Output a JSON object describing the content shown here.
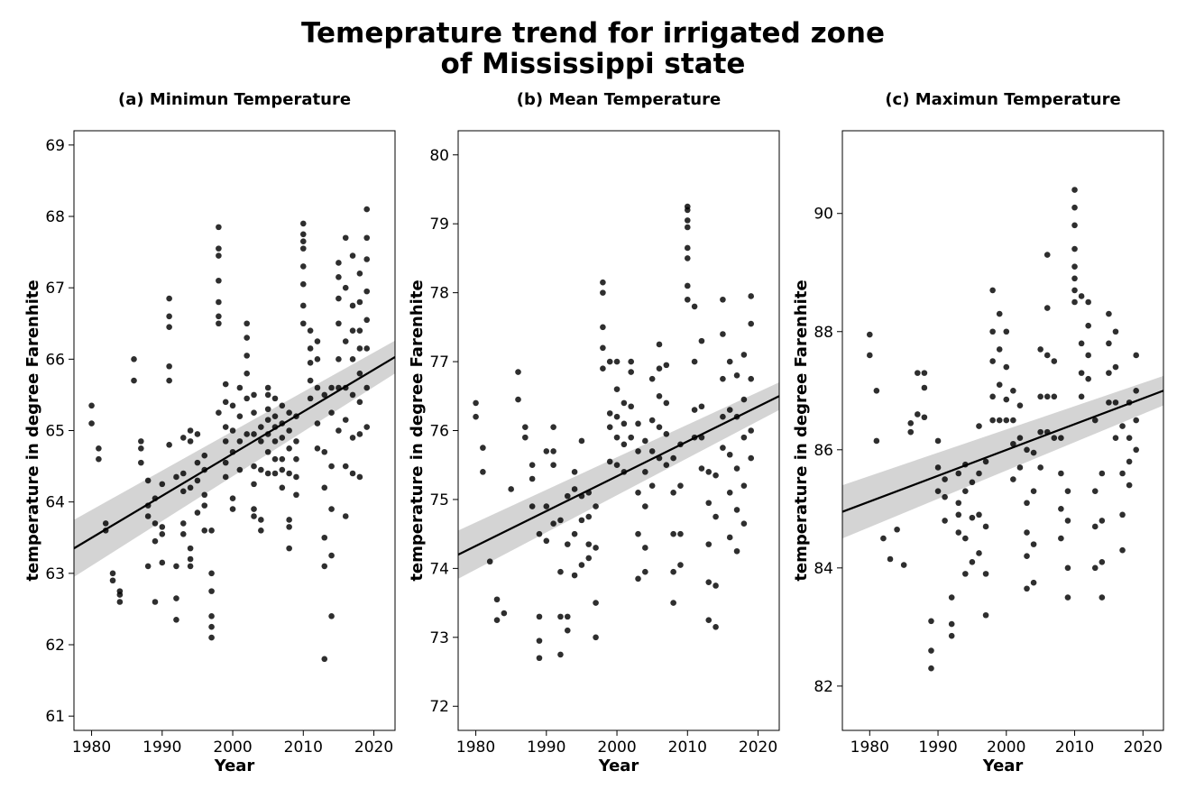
{
  "figure": {
    "title_line1": "Temeprature trend for irrigated zone",
    "title_line2": "of Mississippi state"
  },
  "chart_data": [
    {
      "type": "scatter",
      "title": "(a) Minimun Temperature",
      "xlabel": "Year",
      "ylabel": "temperature in degree Farenhite",
      "xlim": [
        1977.5,
        2023
      ],
      "ylim": [
        60.8,
        69.2
      ],
      "xticks": [
        1980,
        1990,
        2000,
        2010,
        2020
      ],
      "yticks": [
        61,
        62,
        63,
        64,
        65,
        66,
        67,
        68,
        69
      ],
      "regression": {
        "x": [
          1977.5,
          2023
        ],
        "y": [
          63.35,
          66.03
        ],
        "ci_low": [
          62.95,
          65.8
        ],
        "ci_high": [
          63.75,
          66.26
        ]
      },
      "x": [
        1980,
        1980,
        1981,
        1981,
        1982,
        1982,
        1983,
        1983,
        1984,
        1984,
        1984,
        1986,
        1986,
        1987,
        1987,
        1987,
        1988,
        1988,
        1988,
        1988,
        1989,
        1989,
        1989,
        1989,
        1990,
        1990,
        1990,
        1990,
        1991,
        1991,
        1991,
        1991,
        1991,
        1991,
        1992,
        1992,
        1992,
        1992,
        1993,
        1993,
        1993,
        1993,
        1993,
        1994,
        1994,
        1994,
        1994,
        1994,
        1994,
        1995,
        1995,
        1995,
        1995,
        1996,
        1996,
        1996,
        1996,
        1996,
        1997,
        1997,
        1997,
        1997,
        1997,
        1997,
        1998,
        1998,
        1998,
        1998,
        1998,
        1998,
        1998,
        1998,
        1999,
        1999,
        1999,
        1999,
        1999,
        1999,
        2000,
        2000,
        2000,
        2000,
        2000,
        2001,
        2001,
        2001,
        2001,
        2002,
        2002,
        2002,
        2002,
        2002,
        2002,
        2003,
        2003,
        2003,
        2003,
        2003,
        2003,
        2003,
        2004,
        2004,
        2004,
        2004,
        2004,
        2005,
        2005,
        2005,
        2005,
        2005,
        2005,
        2005,
        2006,
        2006,
        2006,
        2006,
        2006,
        2006,
        2007,
        2007,
        2007,
        2007,
        2007,
        2007,
        2008,
        2008,
        2008,
        2008,
        2008,
        2008,
        2008,
        2009,
        2009,
        2009,
        2009,
        2009,
        2010,
        2010,
        2010,
        2010,
        2010,
        2010,
        2010,
        2010,
        2011,
        2011,
        2011,
        2011,
        2011,
        2012,
        2012,
        2012,
        2012,
        2012,
        2013,
        2013,
        2013,
        2013,
        2013,
        2013,
        2014,
        2014,
        2014,
        2014,
        2014,
        2014,
        2015,
        2015,
        2015,
        2015,
        2015,
        2015,
        2015,
        2016,
        2016,
        2016,
        2016,
        2016,
        2016,
        2016,
        2017,
        2017,
        2017,
        2017,
        2017,
        2017,
        2017,
        2018,
        2018,
        2018,
        2018,
        2018,
        2018,
        2018,
        2018,
        2019,
        2019,
        2019,
        2019,
        2019,
        2019,
        2019,
        2019
      ],
      "y": [
        65.1,
        65.35,
        64.6,
        64.75,
        63.6,
        63.7,
        62.9,
        63.0,
        62.6,
        62.7,
        62.75,
        65.7,
        66.0,
        64.55,
        64.75,
        64.85,
        63.8,
        63.95,
        63.1,
        64.3,
        62.6,
        63.45,
        63.7,
        64.05,
        63.15,
        63.55,
        63.65,
        64.25,
        65.7,
        65.9,
        66.45,
        66.6,
        66.85,
        64.8,
        62.35,
        62.65,
        63.1,
        64.35,
        63.7,
        64.15,
        63.55,
        64.4,
        64.9,
        63.1,
        63.2,
        63.35,
        64.2,
        64.85,
        65.0,
        63.85,
        64.3,
        64.55,
        64.95,
        63.6,
        63.95,
        64.1,
        64.45,
        64.65,
        62.1,
        62.25,
        62.4,
        62.75,
        63.0,
        63.6,
        66.5,
        66.6,
        66.8,
        67.1,
        67.45,
        67.55,
        67.85,
        65.25,
        64.35,
        64.55,
        64.85,
        65.05,
        65.4,
        65.65,
        63.9,
        64.05,
        64.7,
        65.0,
        65.35,
        64.45,
        64.85,
        65.2,
        65.6,
        64.95,
        65.45,
        65.8,
        66.05,
        66.3,
        66.5,
        63.8,
        63.9,
        64.25,
        64.5,
        64.95,
        65.25,
        65.5,
        63.6,
        63.75,
        64.45,
        64.85,
        65.05,
        64.4,
        64.7,
        64.95,
        65.15,
        65.3,
        65.5,
        65.6,
        64.4,
        64.6,
        64.85,
        65.05,
        65.2,
        65.45,
        64.2,
        64.45,
        64.6,
        64.9,
        65.1,
        65.35,
        63.35,
        63.65,
        63.75,
        64.4,
        64.75,
        65.0,
        65.25,
        64.1,
        64.35,
        64.6,
        64.85,
        65.2,
        66.5,
        66.75,
        67.05,
        67.3,
        67.55,
        67.65,
        67.75,
        67.9,
        65.45,
        65.7,
        65.95,
        66.15,
        66.4,
        64.75,
        65.1,
        65.6,
        66.0,
        66.25,
        61.8,
        63.1,
        63.5,
        64.2,
        64.7,
        65.5,
        62.4,
        63.25,
        63.9,
        64.5,
        65.25,
        65.6,
        65.0,
        65.6,
        66.0,
        66.5,
        66.85,
        67.15,
        67.35,
        63.8,
        64.5,
        65.15,
        65.6,
        66.25,
        67.0,
        67.7,
        64.4,
        64.9,
        65.5,
        66.0,
        66.4,
        66.75,
        67.45,
        64.35,
        64.95,
        65.4,
        65.8,
        66.15,
        66.4,
        66.8,
        67.2,
        65.05,
        65.6,
        66.15,
        66.55,
        66.95,
        67.4,
        67.7,
        68.1
      ]
    },
    {
      "type": "scatter",
      "title": "(b) Mean Temperature",
      "xlabel": "Year",
      "ylabel": "temperature in degree Farenhite",
      "xlim": [
        1977.5,
        2023
      ],
      "ylim": [
        71.65,
        80.35
      ],
      "xticks": [
        1980,
        1990,
        2000,
        2010,
        2020
      ],
      "yticks": [
        72,
        73,
        74,
        75,
        76,
        77,
        78,
        79,
        80
      ],
      "regression": {
        "x": [
          1977.5,
          2023
        ],
        "y": [
          74.2,
          76.5
        ],
        "ci_low": [
          73.85,
          76.3
        ],
        "ci_high": [
          74.55,
          76.7
        ]
      },
      "x": [
        1980,
        1980,
        1981,
        1981,
        1982,
        1983,
        1983,
        1984,
        1985,
        1986,
        1986,
        1987,
        1987,
        1988,
        1988,
        1988,
        1989,
        1989,
        1989,
        1989,
        1990,
        1990,
        1990,
        1991,
        1991,
        1991,
        1991,
        1992,
        1992,
        1992,
        1992,
        1993,
        1993,
        1993,
        1993,
        1994,
        1994,
        1994,
        1994,
        1995,
        1995,
        1995,
        1995,
        1996,
        1996,
        1996,
        1996,
        1997,
        1997,
        1997,
        1997,
        1998,
        1998,
        1998,
        1998,
        1998,
        1999,
        1999,
        1999,
        1999,
        2000,
        2000,
        2000,
        2000,
        2000,
        2001,
        2001,
        2001,
        2001,
        2002,
        2002,
        2002,
        2002,
        2003,
        2003,
        2003,
        2003,
        2003,
        2004,
        2004,
        2004,
        2004,
        2004,
        2005,
        2005,
        2005,
        2005,
        2006,
        2006,
        2006,
        2006,
        2006,
        2007,
        2007,
        2007,
        2007,
        2008,
        2008,
        2008,
        2008,
        2008,
        2009,
        2009,
        2009,
        2009,
        2010,
        2010,
        2010,
        2010,
        2010,
        2010,
        2010,
        2010,
        2011,
        2011,
        2011,
        2011,
        2012,
        2012,
        2012,
        2012,
        2013,
        2013,
        2013,
        2013,
        2013,
        2014,
        2014,
        2014,
        2014,
        2015,
        2015,
        2015,
        2015,
        2015,
        2016,
        2016,
        2016,
        2016,
        2016,
        2017,
        2017,
        2017,
        2017,
        2017,
        2018,
        2018,
        2018,
        2018,
        2018,
        2019,
        2019,
        2019,
        2019,
        2019
      ],
      "y": [
        76.2,
        76.4,
        75.4,
        75.75,
        74.1,
        73.25,
        73.55,
        73.35,
        75.15,
        76.45,
        76.85,
        75.9,
        76.05,
        74.9,
        75.3,
        75.5,
        72.7,
        72.95,
        73.3,
        74.5,
        74.4,
        74.9,
        75.7,
        74.65,
        75.5,
        75.7,
        76.05,
        72.75,
        73.3,
        73.95,
        74.7,
        73.1,
        73.3,
        74.35,
        75.05,
        73.9,
        74.5,
        75.15,
        75.4,
        74.05,
        74.7,
        75.05,
        75.85,
        74.15,
        74.35,
        74.75,
        75.1,
        73.0,
        73.5,
        74.3,
        74.9,
        76.9,
        77.2,
        77.5,
        78.0,
        78.15,
        76.05,
        75.55,
        76.25,
        77.0,
        75.5,
        75.9,
        76.2,
        76.6,
        77.0,
        75.4,
        75.8,
        76.1,
        76.4,
        75.9,
        76.35,
        76.85,
        77.0,
        73.85,
        74.5,
        75.1,
        75.7,
        76.1,
        73.95,
        74.3,
        74.9,
        75.4,
        75.85,
        75.2,
        75.7,
        76.15,
        76.75,
        75.6,
        76.05,
        76.5,
        76.9,
        77.25,
        75.5,
        75.95,
        76.4,
        76.95,
        73.5,
        73.95,
        74.5,
        75.1,
        75.6,
        74.05,
        74.5,
        75.2,
        75.8,
        77.9,
        78.1,
        78.5,
        78.95,
        79.25,
        79.2,
        79.05,
        78.65,
        75.9,
        76.3,
        77.0,
        77.8,
        75.45,
        75.9,
        76.35,
        77.3,
        73.25,
        73.8,
        74.35,
        74.95,
        75.4,
        73.15,
        73.75,
        74.75,
        75.35,
        75.75,
        76.2,
        76.75,
        77.4,
        77.9,
        74.45,
        75.1,
        75.65,
        76.3,
        77.0,
        74.25,
        74.85,
        75.45,
        76.2,
        76.8,
        74.65,
        75.2,
        75.9,
        76.45,
        77.1,
        75.6,
        76.0,
        76.75,
        77.55,
        77.95
      ]
    },
    {
      "type": "scatter",
      "title": "(c) Maximun Temperature",
      "xlabel": "Year",
      "ylabel": "temperature in degree Farenhite",
      "xlim": [
        1976,
        2023
      ],
      "ylim": [
        81.25,
        91.4
      ],
      "xticks": [
        1980,
        1990,
        2000,
        2010,
        2020
      ],
      "yticks": [
        82,
        84,
        86,
        88,
        90
      ],
      "regression": {
        "x": [
          1976,
          2023
        ],
        "y": [
          84.95,
          87.0
        ],
        "ci_low": [
          84.5,
          86.75
        ],
        "ci_high": [
          85.4,
          87.25
        ]
      },
      "x": [
        1980,
        1980,
        1981,
        1981,
        1982,
        1983,
        1984,
        1985,
        1986,
        1986,
        1987,
        1987,
        1988,
        1988,
        1988,
        1989,
        1989,
        1989,
        1990,
        1990,
        1990,
        1991,
        1991,
        1991,
        1992,
        1992,
        1992,
        1993,
        1993,
        1993,
        1993,
        1994,
        1994,
        1994,
        1994,
        1995,
        1995,
        1995,
        1996,
        1996,
        1996,
        1996,
        1997,
        1997,
        1997,
        1997,
        1998,
        1998,
        1998,
        1998,
        1998,
        1999,
        1999,
        1999,
        1999,
        2000,
        2000,
        2000,
        2000,
        2001,
        2001,
        2001,
        2001,
        2002,
        2002,
        2002,
        2003,
        2003,
        2003,
        2003,
        2003,
        2004,
        2004,
        2004,
        2004,
        2005,
        2005,
        2005,
        2005,
        2006,
        2006,
        2006,
        2006,
        2006,
        2007,
        2007,
        2007,
        2008,
        2008,
        2008,
        2008,
        2009,
        2009,
        2009,
        2009,
        2010,
        2010,
        2010,
        2010,
        2010,
        2010,
        2010,
        2010,
        2011,
        2011,
        2011,
        2011,
        2012,
        2012,
        2012,
        2012,
        2013,
        2013,
        2013,
        2013,
        2014,
        2014,
        2014,
        2014,
        2015,
        2015,
        2015,
        2015,
        2016,
        2016,
        2016,
        2016,
        2017,
        2017,
        2017,
        2017,
        2018,
        2018,
        2018,
        2018,
        2019,
        2019,
        2019,
        2019
      ],
      "y": [
        87.6,
        87.95,
        86.15,
        87.0,
        84.5,
        84.15,
        84.65,
        84.05,
        86.3,
        86.45,
        87.3,
        86.6,
        86.55,
        87.05,
        87.3,
        82.3,
        82.6,
        83.1,
        85.3,
        85.7,
        86.15,
        84.8,
        85.2,
        85.5,
        82.85,
        83.05,
        83.5,
        84.6,
        84.9,
        85.1,
        85.6,
        83.9,
        84.5,
        85.3,
        85.75,
        84.1,
        84.85,
        85.45,
        84.25,
        84.9,
        85.6,
        86.4,
        83.2,
        83.9,
        84.7,
        85.8,
        86.5,
        86.9,
        87.5,
        88.0,
        88.7,
        86.5,
        87.1,
        87.7,
        88.3,
        86.5,
        86.85,
        87.4,
        88.0,
        85.5,
        86.1,
        86.5,
        87.0,
        85.7,
        86.2,
        86.75,
        83.65,
        84.2,
        84.6,
        85.1,
        86.0,
        83.75,
        84.4,
        85.3,
        85.95,
        85.7,
        86.3,
        86.9,
        87.7,
        86.3,
        86.9,
        87.6,
        88.4,
        89.3,
        86.2,
        86.9,
        87.5,
        84.5,
        85.0,
        85.6,
        86.2,
        83.5,
        84.0,
        84.8,
        85.3,
        88.5,
        88.9,
        89.4,
        89.8,
        90.1,
        90.4,
        89.1,
        88.7,
        86.9,
        87.3,
        87.8,
        88.6,
        87.2,
        87.6,
        88.1,
        88.5,
        84.0,
        84.7,
        85.3,
        86.5,
        83.5,
        84.1,
        84.8,
        85.6,
        86.8,
        87.3,
        87.8,
        88.3,
        86.2,
        86.8,
        87.4,
        88.0,
        84.3,
        84.9,
        85.6,
        86.4,
        85.4,
        85.8,
        86.2,
        86.8,
        86.0,
        86.5,
        87.0,
        87.6
      ]
    }
  ]
}
